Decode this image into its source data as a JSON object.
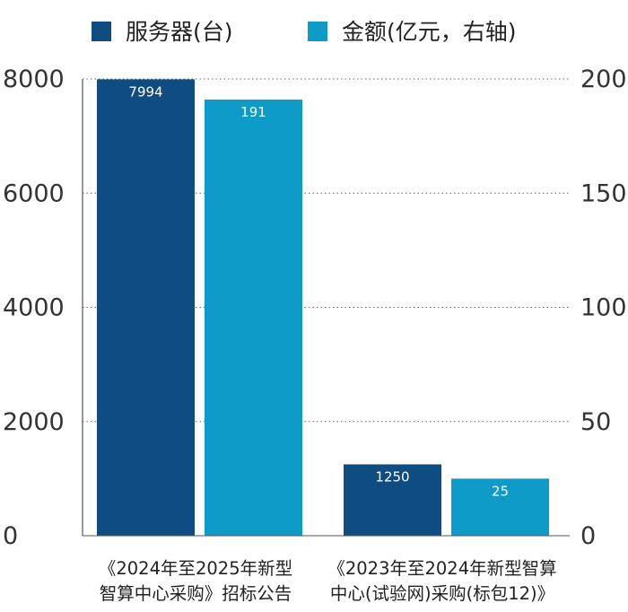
{
  "chart_data": {
    "type": "bar",
    "categories": [
      {
        "lines": [
          "《2024年至2025年新型",
          "智算中心采购》招标公告"
        ]
      },
      {
        "lines": [
          "《2023年至2024年新型智算",
          "中心(试验网)采购(标包12)》"
        ]
      }
    ],
    "series": [
      {
        "name": "服务器(台)",
        "axis": "left",
        "color": "#0f4c81",
        "values": [
          7994,
          1250
        ]
      },
      {
        "name": "金额(亿元，右轴)",
        "axis": "right",
        "color": "#0e9bc7",
        "values": [
          191,
          25
        ]
      }
    ],
    "y_left": {
      "min": 0,
      "max": 8000,
      "ticks": [
        "0",
        "2000",
        "4000",
        "6000",
        "8000"
      ]
    },
    "y_right": {
      "min": 0,
      "max": 200,
      "ticks": [
        "0",
        "50",
        "100",
        "150",
        "200"
      ]
    },
    "grid": true,
    "legend_position": "top"
  }
}
